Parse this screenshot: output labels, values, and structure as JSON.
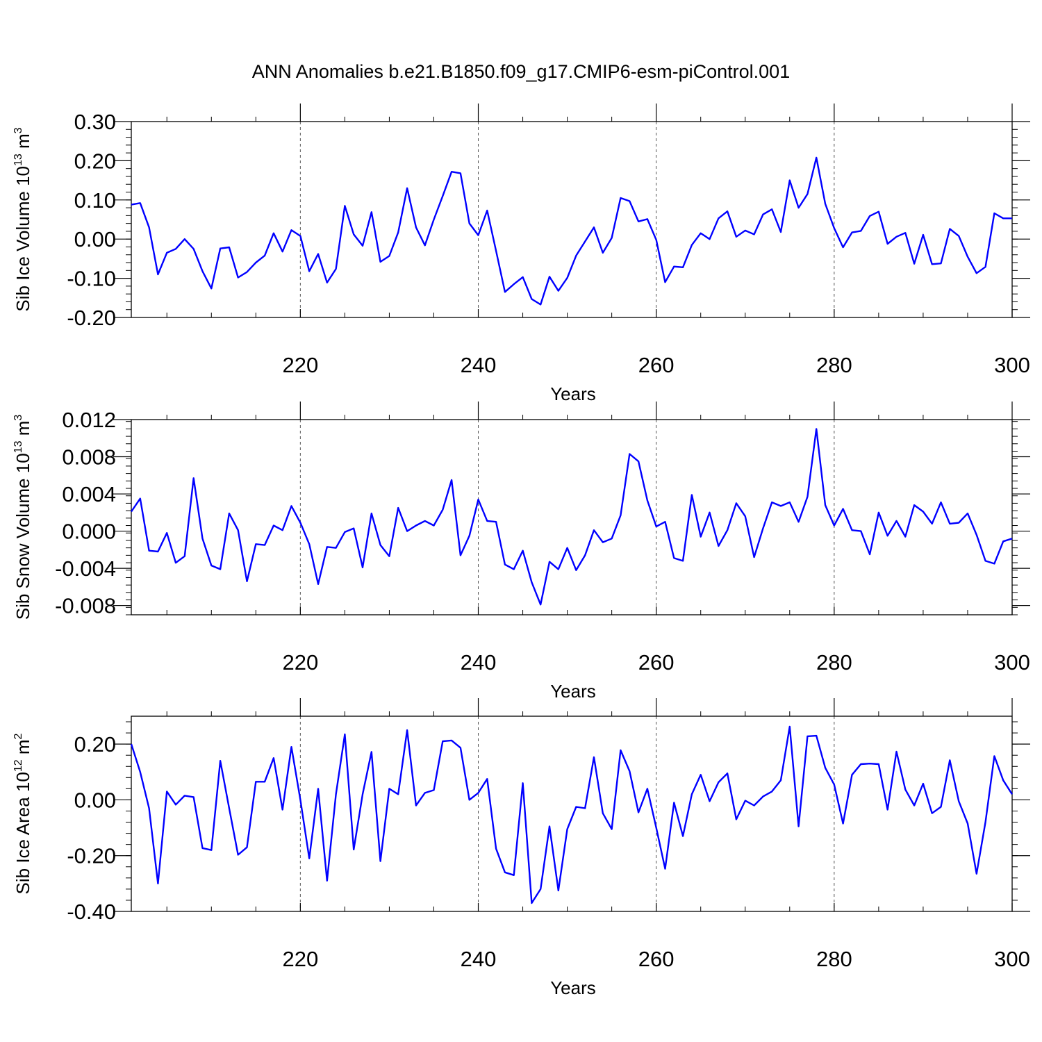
{
  "chart_data": {
    "title": "ANN Anomalies b.e21.B1850.f09_g17.CMIP6-esm-piControl.001",
    "series_color": "#0000ff",
    "panels": [
      {
        "type": "line",
        "ylabel": "Sib Ice Volume 10",
        "ylabel_exp": "13",
        "ylabel_unit": " m",
        "ylabel_unit_exp": "3",
        "xlabel": "Years",
        "xlim": [
          201,
          300
        ],
        "ylim": [
          -0.2,
          0.3
        ],
        "yticks": [
          -0.2,
          -0.1,
          0.0,
          0.1,
          0.2,
          0.3
        ],
        "ytick_labels": [
          "-0.20",
          "-0.10",
          "0.00",
          "0.10",
          "0.20",
          "0.30"
        ],
        "xticks": [
          220,
          240,
          260,
          280,
          300
        ],
        "xtick_labels": [
          "220",
          "240",
          "260",
          "280",
          "300"
        ],
        "x_start": 201,
        "values": [
          0.088,
          0.092,
          0.03,
          -0.09,
          -0.035,
          -0.025,
          0.0,
          -0.025,
          -0.082,
          -0.126,
          -0.024,
          -0.021,
          -0.098,
          -0.084,
          -0.06,
          -0.042,
          0.015,
          -0.032,
          0.023,
          0.008,
          -0.082,
          -0.038,
          -0.111,
          -0.076,
          0.085,
          0.012,
          -0.017,
          0.069,
          -0.058,
          -0.043,
          0.017,
          0.13,
          0.03,
          -0.016,
          0.05,
          0.11,
          0.172,
          0.168,
          0.04,
          0.01,
          0.073,
          -0.03,
          -0.135,
          -0.115,
          -0.097,
          -0.153,
          -0.167,
          -0.096,
          -0.132,
          -0.099,
          -0.042,
          -0.006,
          0.03,
          -0.035,
          0.003,
          0.105,
          0.097,
          0.045,
          0.051,
          -0.002,
          -0.11,
          -0.07,
          -0.072,
          -0.015,
          0.015,
          0.0,
          0.053,
          0.071,
          0.006,
          0.022,
          0.012,
          0.063,
          0.076,
          0.018,
          0.15,
          0.08,
          0.115,
          0.208,
          0.09,
          0.028,
          -0.021,
          0.017,
          0.021,
          0.059,
          0.07,
          -0.012,
          0.006,
          0.016,
          -0.063,
          0.011,
          -0.064,
          -0.062,
          0.026,
          0.008,
          -0.045,
          -0.087,
          -0.071,
          0.066,
          0.053,
          0.053
        ]
      },
      {
        "type": "line",
        "ylabel": "Sib Snow Volume 10",
        "ylabel_exp": "13",
        "ylabel_unit": " m",
        "ylabel_unit_exp": "3",
        "xlabel": "Years",
        "xlim": [
          201,
          300
        ],
        "ylim": [
          -0.009,
          0.012
        ],
        "yticks": [
          -0.008,
          -0.004,
          0.0,
          0.004,
          0.008,
          0.012
        ],
        "ytick_labels": [
          "-0.008",
          "-0.004",
          "0.000",
          "0.004",
          "0.008",
          "0.012"
        ],
        "xticks": [
          220,
          240,
          260,
          280,
          300
        ],
        "xtick_labels": [
          "220",
          "240",
          "260",
          "280",
          "300"
        ],
        "x_start": 201,
        "values": [
          0.0021,
          0.0035,
          -0.0021,
          -0.0022,
          -0.0002,
          -0.0034,
          -0.0027,
          0.0057,
          -0.0008,
          -0.0037,
          -0.0041,
          0.0019,
          0.0001,
          -0.0054,
          -0.0014,
          -0.0015,
          0.0006,
          0.0001,
          0.0027,
          0.0009,
          -0.0014,
          -0.0057,
          -0.0017,
          -0.0018,
          -0.0001,
          0.0003,
          -0.0039,
          0.0019,
          -0.0015,
          -0.0027,
          0.0025,
          0.0,
          0.0006,
          0.0011,
          0.0006,
          0.0023,
          0.0055,
          -0.0026,
          -0.0005,
          0.0034,
          0.0011,
          0.001,
          -0.0036,
          -0.0041,
          -0.0021,
          -0.0055,
          -0.0079,
          -0.0033,
          -0.0041,
          -0.0018,
          -0.0042,
          -0.0026,
          0.0001,
          -0.0012,
          -0.0008,
          0.0017,
          0.0083,
          0.0075,
          0.0033,
          0.0005,
          0.001,
          -0.0029,
          -0.0032,
          0.0039,
          -0.0006,
          0.002,
          -0.0016,
          0.0001,
          0.003,
          0.0016,
          -0.0028,
          0.0003,
          0.0031,
          0.0027,
          0.0031,
          0.001,
          0.0037,
          0.011,
          0.0028,
          0.0006,
          0.0024,
          0.0001,
          0.0,
          -0.0025,
          0.002,
          -0.0005,
          0.0011,
          -0.0006,
          0.0028,
          0.0021,
          0.0008,
          0.0031,
          0.0008,
          0.0009,
          0.0019,
          -0.0004,
          -0.0032,
          -0.0035,
          -0.0011,
          -0.0008
        ]
      },
      {
        "type": "line",
        "ylabel": "Sib Ice Area 10",
        "ylabel_exp": "12",
        "ylabel_unit": " m",
        "ylabel_unit_exp": "2",
        "xlabel": "Years",
        "xlim": [
          201,
          300
        ],
        "ylim": [
          -0.4,
          0.3
        ],
        "yticks": [
          -0.4,
          -0.2,
          0.0,
          0.2
        ],
        "ytick_labels": [
          "-0.40",
          "-0.20",
          "0.00",
          "0.20"
        ],
        "xticks": [
          220,
          240,
          260,
          280,
          300
        ],
        "xtick_labels": [
          "220",
          "240",
          "260",
          "280",
          "300"
        ],
        "x_start": 201,
        "values": [
          0.2,
          0.1,
          -0.03,
          -0.3,
          0.03,
          -0.017,
          0.015,
          0.01,
          -0.173,
          -0.18,
          0.14,
          -0.03,
          -0.197,
          -0.17,
          0.065,
          0.065,
          0.15,
          -0.035,
          0.19,
          0.0,
          -0.21,
          0.04,
          -0.29,
          0.02,
          0.235,
          -0.178,
          0.02,
          0.172,
          -0.22,
          0.04,
          0.02,
          0.25,
          -0.02,
          0.025,
          0.035,
          0.21,
          0.213,
          0.187,
          0.0,
          0.025,
          0.075,
          -0.175,
          -0.26,
          -0.27,
          0.06,
          -0.37,
          -0.32,
          -0.095,
          -0.325,
          -0.105,
          -0.025,
          -0.03,
          0.153,
          -0.048,
          -0.105,
          0.178,
          0.103,
          -0.045,
          0.04,
          -0.1,
          -0.247,
          -0.01,
          -0.13,
          0.02,
          0.09,
          -0.005,
          0.063,
          0.095,
          -0.07,
          -0.003,
          -0.02,
          0.012,
          0.03,
          0.07,
          0.263,
          -0.095,
          0.228,
          0.23,
          0.115,
          0.055,
          -0.085,
          0.09,
          0.128,
          0.13,
          0.128,
          -0.035,
          0.173,
          0.037,
          -0.02,
          0.058,
          -0.048,
          -0.025,
          0.142,
          -0.005,
          -0.085,
          -0.265,
          -0.08,
          0.157,
          0.07,
          0.02
        ]
      }
    ]
  }
}
